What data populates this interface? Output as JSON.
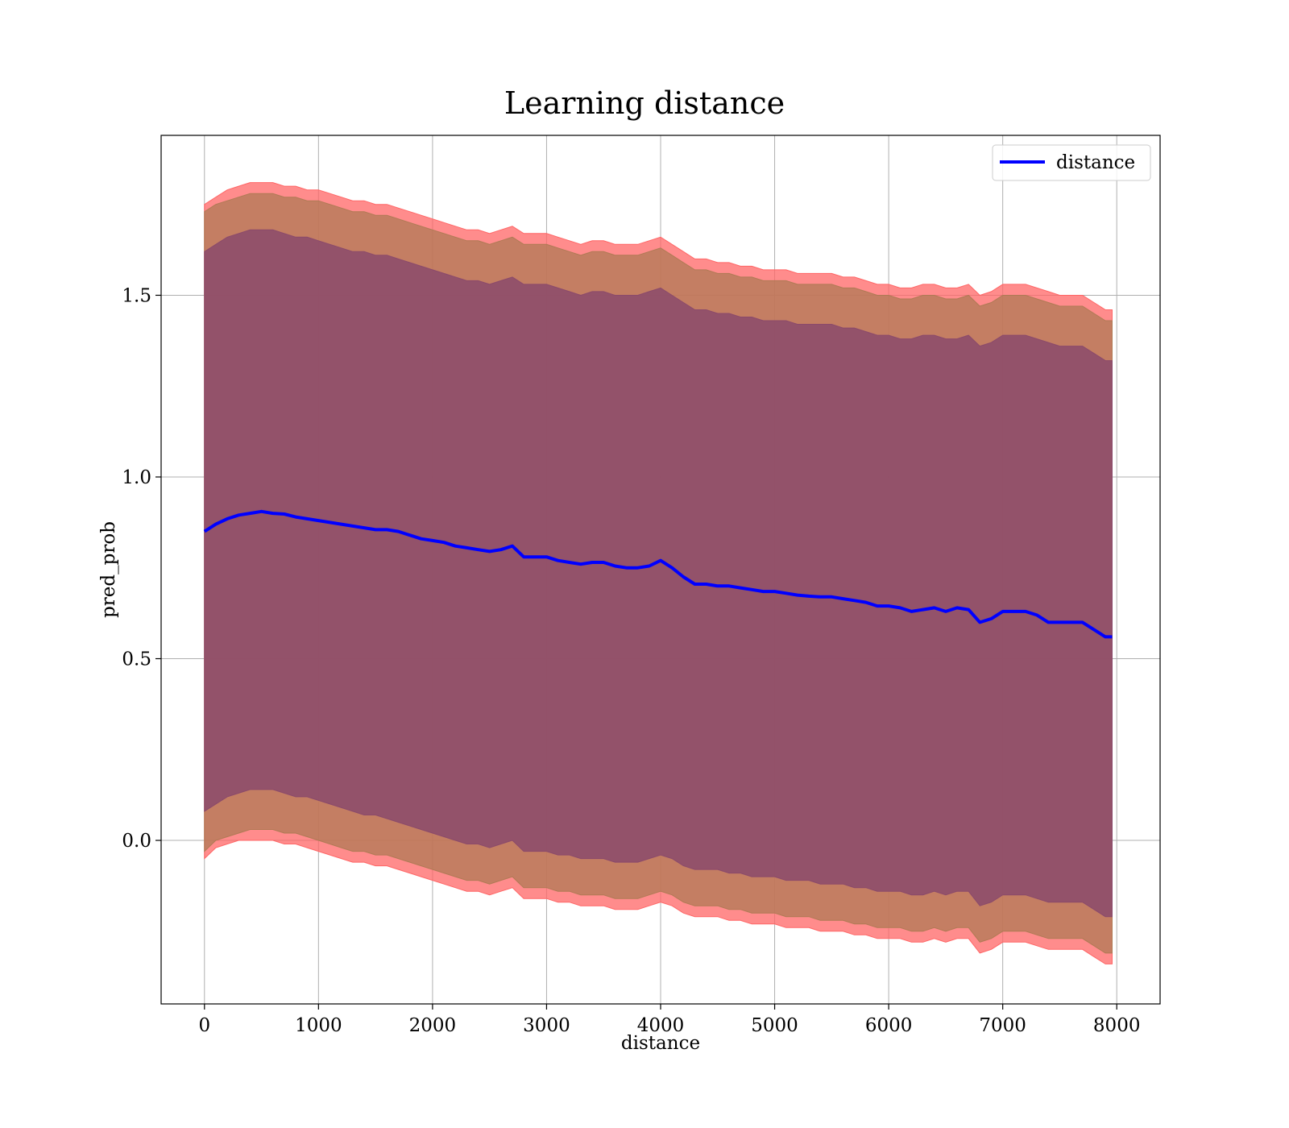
{
  "chart_data": {
    "type": "line",
    "title": "Learning distance",
    "xlabel": "distance",
    "ylabel": "pred_prob",
    "xlim": [
      -380,
      8380
    ],
    "ylim": [
      -0.45,
      1.94
    ],
    "xticks": [
      0,
      1000,
      2000,
      3000,
      4000,
      5000,
      6000,
      7000,
      8000
    ],
    "xtick_labels": [
      "0",
      "1000",
      "2000",
      "3000",
      "4000",
      "5000",
      "6000",
      "7000",
      "8000"
    ],
    "yticks": [
      0.0,
      0.5,
      1.0,
      1.5
    ],
    "ytick_labels": [
      "0.0",
      "0.5",
      "1.0",
      "1.5"
    ],
    "grid": true,
    "legend_position": "upper-right",
    "series": [
      {
        "name": "distance",
        "color": "#0000ff",
        "x": [
          0,
          100,
          200,
          300,
          400,
          500,
          600,
          700,
          800,
          900,
          1000,
          1100,
          1200,
          1300,
          1400,
          1500,
          1600,
          1700,
          1800,
          1900,
          2000,
          2100,
          2200,
          2300,
          2400,
          2500,
          2600,
          2700,
          2800,
          2900,
          3000,
          3100,
          3200,
          3300,
          3400,
          3500,
          3600,
          3700,
          3800,
          3900,
          4000,
          4100,
          4200,
          4300,
          4400,
          4500,
          4600,
          4700,
          4800,
          4900,
          5000,
          5100,
          5200,
          5300,
          5400,
          5500,
          5600,
          5700,
          5800,
          5900,
          6000,
          6100,
          6200,
          6300,
          6400,
          6500,
          6600,
          6700,
          6800,
          6900,
          7000,
          7100,
          7200,
          7300,
          7400,
          7500,
          7600,
          7700,
          7800,
          7900,
          7960
        ],
        "y": [
          0.85,
          0.87,
          0.885,
          0.895,
          0.9,
          0.905,
          0.9,
          0.898,
          0.89,
          0.885,
          0.88,
          0.875,
          0.87,
          0.865,
          0.86,
          0.855,
          0.855,
          0.85,
          0.84,
          0.83,
          0.825,
          0.82,
          0.81,
          0.805,
          0.8,
          0.795,
          0.8,
          0.81,
          0.78,
          0.78,
          0.78,
          0.77,
          0.765,
          0.76,
          0.765,
          0.765,
          0.755,
          0.75,
          0.75,
          0.755,
          0.77,
          0.75,
          0.725,
          0.705,
          0.705,
          0.7,
          0.7,
          0.695,
          0.69,
          0.685,
          0.685,
          0.68,
          0.675,
          0.672,
          0.67,
          0.67,
          0.665,
          0.66,
          0.655,
          0.645,
          0.645,
          0.64,
          0.63,
          0.635,
          0.64,
          0.63,
          0.64,
          0.635,
          0.6,
          0.61,
          0.63,
          0.63,
          0.63,
          0.62,
          0.6,
          0.6,
          0.6,
          0.6,
          0.58,
          0.56,
          0.56
        ]
      }
    ],
    "bands": [
      {
        "description": "outer",
        "color": "#ff6666",
        "lower": [
          -0.05,
          -0.02,
          -0.01,
          0.0,
          0.0,
          0.0,
          0.0,
          -0.01,
          -0.01,
          -0.02,
          -0.03,
          -0.04,
          -0.05,
          -0.06,
          -0.06,
          -0.07,
          -0.07,
          -0.08,
          -0.09,
          -0.1,
          -0.11,
          -0.12,
          -0.13,
          -0.14,
          -0.14,
          -0.15,
          -0.14,
          -0.13,
          -0.16,
          -0.16,
          -0.16,
          -0.17,
          -0.17,
          -0.18,
          -0.18,
          -0.18,
          -0.19,
          -0.19,
          -0.19,
          -0.18,
          -0.17,
          -0.18,
          -0.2,
          -0.21,
          -0.21,
          -0.21,
          -0.22,
          -0.22,
          -0.23,
          -0.23,
          -0.23,
          -0.24,
          -0.24,
          -0.24,
          -0.25,
          -0.25,
          -0.25,
          -0.26,
          -0.26,
          -0.27,
          -0.27,
          -0.27,
          -0.28,
          -0.28,
          -0.27,
          -0.28,
          -0.27,
          -0.27,
          -0.31,
          -0.3,
          -0.28,
          -0.28,
          -0.28,
          -0.29,
          -0.3,
          -0.3,
          -0.3,
          -0.3,
          -0.32,
          -0.34,
          -0.34
        ],
        "upper": [
          1.75,
          1.77,
          1.79,
          1.8,
          1.81,
          1.81,
          1.81,
          1.8,
          1.8,
          1.79,
          1.79,
          1.78,
          1.77,
          1.76,
          1.76,
          1.75,
          1.75,
          1.74,
          1.73,
          1.72,
          1.71,
          1.7,
          1.69,
          1.68,
          1.68,
          1.67,
          1.68,
          1.69,
          1.67,
          1.67,
          1.67,
          1.66,
          1.65,
          1.64,
          1.65,
          1.65,
          1.64,
          1.64,
          1.64,
          1.65,
          1.66,
          1.64,
          1.62,
          1.6,
          1.6,
          1.59,
          1.59,
          1.58,
          1.58,
          1.57,
          1.57,
          1.57,
          1.56,
          1.56,
          1.56,
          1.56,
          1.55,
          1.55,
          1.54,
          1.53,
          1.53,
          1.52,
          1.52,
          1.53,
          1.53,
          1.52,
          1.52,
          1.53,
          1.5,
          1.51,
          1.53,
          1.53,
          1.53,
          1.52,
          1.51,
          1.5,
          1.5,
          1.5,
          1.48,
          1.46,
          1.46
        ]
      },
      {
        "description": "middle",
        "color": "#b07a55",
        "lower": [
          -0.03,
          0.0,
          0.01,
          0.02,
          0.03,
          0.03,
          0.03,
          0.02,
          0.02,
          0.01,
          0.0,
          -0.01,
          -0.02,
          -0.03,
          -0.03,
          -0.04,
          -0.04,
          -0.05,
          -0.06,
          -0.07,
          -0.08,
          -0.09,
          -0.1,
          -0.11,
          -0.11,
          -0.12,
          -0.11,
          -0.1,
          -0.13,
          -0.13,
          -0.13,
          -0.14,
          -0.14,
          -0.15,
          -0.15,
          -0.15,
          -0.16,
          -0.16,
          -0.16,
          -0.15,
          -0.14,
          -0.15,
          -0.17,
          -0.18,
          -0.18,
          -0.18,
          -0.19,
          -0.19,
          -0.2,
          -0.2,
          -0.2,
          -0.21,
          -0.21,
          -0.21,
          -0.22,
          -0.22,
          -0.22,
          -0.23,
          -0.23,
          -0.24,
          -0.24,
          -0.24,
          -0.25,
          -0.25,
          -0.24,
          -0.25,
          -0.24,
          -0.24,
          -0.28,
          -0.27,
          -0.25,
          -0.25,
          -0.25,
          -0.26,
          -0.27,
          -0.27,
          -0.27,
          -0.27,
          -0.29,
          -0.31,
          -0.31
        ],
        "upper": [
          1.73,
          1.75,
          1.76,
          1.77,
          1.78,
          1.78,
          1.78,
          1.77,
          1.77,
          1.76,
          1.76,
          1.75,
          1.74,
          1.73,
          1.73,
          1.72,
          1.72,
          1.71,
          1.7,
          1.69,
          1.68,
          1.67,
          1.66,
          1.65,
          1.65,
          1.64,
          1.65,
          1.66,
          1.64,
          1.64,
          1.64,
          1.63,
          1.62,
          1.61,
          1.62,
          1.62,
          1.61,
          1.61,
          1.61,
          1.62,
          1.63,
          1.61,
          1.59,
          1.57,
          1.57,
          1.56,
          1.56,
          1.55,
          1.55,
          1.54,
          1.54,
          1.54,
          1.53,
          1.53,
          1.53,
          1.53,
          1.52,
          1.52,
          1.51,
          1.5,
          1.5,
          1.49,
          1.49,
          1.5,
          1.5,
          1.49,
          1.49,
          1.5,
          1.47,
          1.48,
          1.5,
          1.5,
          1.5,
          1.49,
          1.48,
          1.47,
          1.47,
          1.47,
          1.45,
          1.43,
          1.43
        ]
      },
      {
        "description": "inner",
        "color": "#8b4a6b",
        "lower": [
          0.08,
          0.1,
          0.12,
          0.13,
          0.14,
          0.14,
          0.14,
          0.13,
          0.12,
          0.12,
          0.11,
          0.1,
          0.09,
          0.08,
          0.07,
          0.07,
          0.06,
          0.05,
          0.04,
          0.03,
          0.02,
          0.01,
          0.0,
          -0.01,
          -0.01,
          -0.02,
          -0.01,
          0.0,
          -0.03,
          -0.03,
          -0.03,
          -0.04,
          -0.04,
          -0.05,
          -0.05,
          -0.05,
          -0.06,
          -0.06,
          -0.06,
          -0.05,
          -0.04,
          -0.05,
          -0.07,
          -0.08,
          -0.08,
          -0.08,
          -0.09,
          -0.09,
          -0.1,
          -0.1,
          -0.1,
          -0.11,
          -0.11,
          -0.11,
          -0.12,
          -0.12,
          -0.12,
          -0.13,
          -0.13,
          -0.14,
          -0.14,
          -0.14,
          -0.15,
          -0.15,
          -0.14,
          -0.15,
          -0.14,
          -0.14,
          -0.18,
          -0.17,
          -0.15,
          -0.15,
          -0.15,
          -0.16,
          -0.17,
          -0.17,
          -0.17,
          -0.17,
          -0.19,
          -0.21,
          -0.21
        ],
        "upper": [
          1.62,
          1.64,
          1.66,
          1.67,
          1.68,
          1.68,
          1.68,
          1.67,
          1.66,
          1.66,
          1.65,
          1.64,
          1.63,
          1.62,
          1.62,
          1.61,
          1.61,
          1.6,
          1.59,
          1.58,
          1.57,
          1.56,
          1.55,
          1.54,
          1.54,
          1.53,
          1.54,
          1.55,
          1.53,
          1.53,
          1.53,
          1.52,
          1.51,
          1.5,
          1.51,
          1.51,
          1.5,
          1.5,
          1.5,
          1.51,
          1.52,
          1.5,
          1.48,
          1.46,
          1.46,
          1.45,
          1.45,
          1.44,
          1.44,
          1.43,
          1.43,
          1.43,
          1.42,
          1.42,
          1.42,
          1.42,
          1.41,
          1.41,
          1.4,
          1.39,
          1.39,
          1.38,
          1.38,
          1.39,
          1.39,
          1.38,
          1.38,
          1.39,
          1.36,
          1.37,
          1.39,
          1.39,
          1.39,
          1.38,
          1.37,
          1.36,
          1.36,
          1.36,
          1.34,
          1.32,
          1.32
        ]
      }
    ]
  }
}
